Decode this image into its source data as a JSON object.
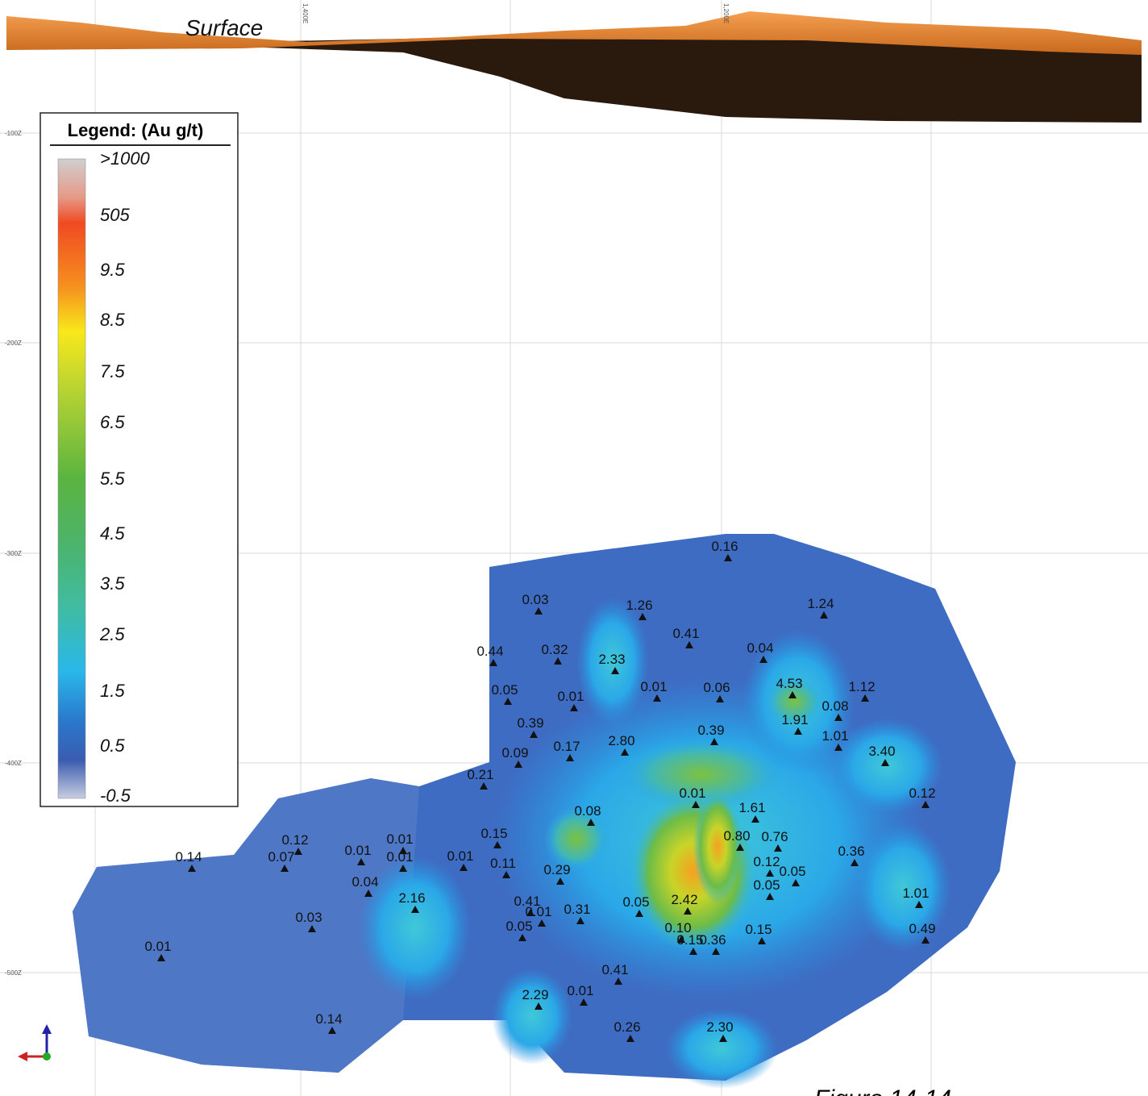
{
  "header": {
    "title": "Surface"
  },
  "legend": {
    "title": "Legend: (Au g/t)",
    "labels": [
      ">1000",
      "505",
      "9.5",
      "8.5",
      "7.5",
      "6.5",
      "5.5",
      "4.5",
      "3.5",
      "2.5",
      "1.5",
      "0.5",
      "-0.5"
    ]
  },
  "axes": {
    "z_labels": [
      "-100Z",
      "-200Z",
      "-300Z",
      "-400Z",
      "-500Z"
    ],
    "e_labels": [
      "1,400E",
      "1,200E"
    ]
  },
  "samples": [
    "0.16",
    "0.03",
    "1.26",
    "1.24",
    "0.41",
    "0.44",
    "0.32",
    "2.33",
    "0.04",
    "0.05",
    "0.01",
    "0.01",
    "0.06",
    "4.53",
    "1.12",
    "0.08",
    "1.91",
    "0.39",
    "0.39",
    "1.01",
    "0.17",
    "2.80",
    "0.09",
    "3.40",
    "0.21",
    "0.01",
    "0.12",
    "0.08",
    "1.61",
    "0.15",
    "0.80",
    "0.76",
    "0.12",
    "0.01",
    "0.07",
    "0.01",
    "0.01",
    "0.01",
    "0.14",
    "0.11",
    "0.29",
    "0.36",
    "0.12",
    "0.05",
    "0.04",
    "2.16",
    "0.05",
    "1.01",
    "0.41",
    "0.01",
    "0.31",
    "0.05",
    "2.42",
    "0.03",
    "0.05",
    "0.10",
    "0.15",
    "0.36",
    "0.15",
    "0.49",
    "0.01",
    "0.41",
    "0.01",
    "2.29",
    "0.14",
    "0.26",
    "2.30"
  ],
  "footer": {
    "figure": "Figure 14-14"
  }
}
